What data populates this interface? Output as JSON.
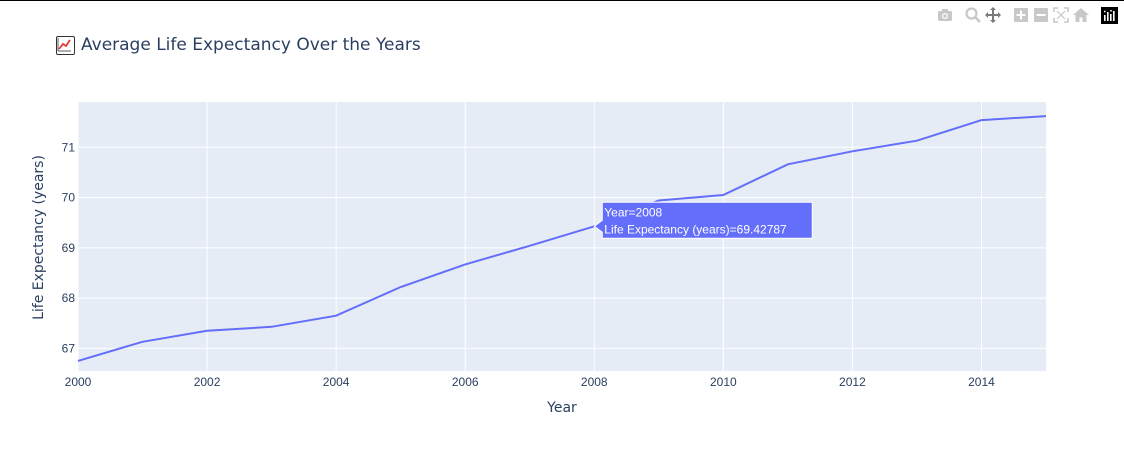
{
  "modebar": {
    "icons": [
      "camera-icon",
      "zoom-icon",
      "pan-icon",
      "zoom-in-icon",
      "zoom-out-icon",
      "autoscale-icon",
      "reset-axes-icon",
      "plotly-logo-icon"
    ]
  },
  "chart_data": {
    "type": "line",
    "title": "Average Life Expectancy Over the Years",
    "title_icon": "chart-increasing-emoji",
    "xlabel": "Year",
    "ylabel": "Life Expectancy (years)",
    "xlim": [
      2000,
      2015
    ],
    "ylim": [
      66.55,
      71.9
    ],
    "x_ticks": [
      2000,
      2002,
      2004,
      2006,
      2008,
      2010,
      2012,
      2014
    ],
    "y_ticks": [
      67,
      68,
      69,
      70,
      71
    ],
    "grid": true,
    "line_color": "#636efa",
    "plot_bg": "#e5ecf6",
    "series": [
      {
        "x": [
          2000,
          2001,
          2002,
          2003,
          2004,
          2005,
          2006,
          2007,
          2008,
          2009,
          2010,
          2011,
          2012,
          2013,
          2014,
          2015
        ],
        "values": [
          66.75,
          67.13,
          67.35,
          67.43,
          67.65,
          68.22,
          68.67,
          69.04,
          69.42787,
          69.94,
          70.05,
          70.66,
          70.92,
          71.13,
          71.54,
          71.62
        ]
      }
    ],
    "tooltip": {
      "index": 8,
      "line1": "Year=2008",
      "line2": "Life Expectancy (years)=69.42787"
    }
  }
}
